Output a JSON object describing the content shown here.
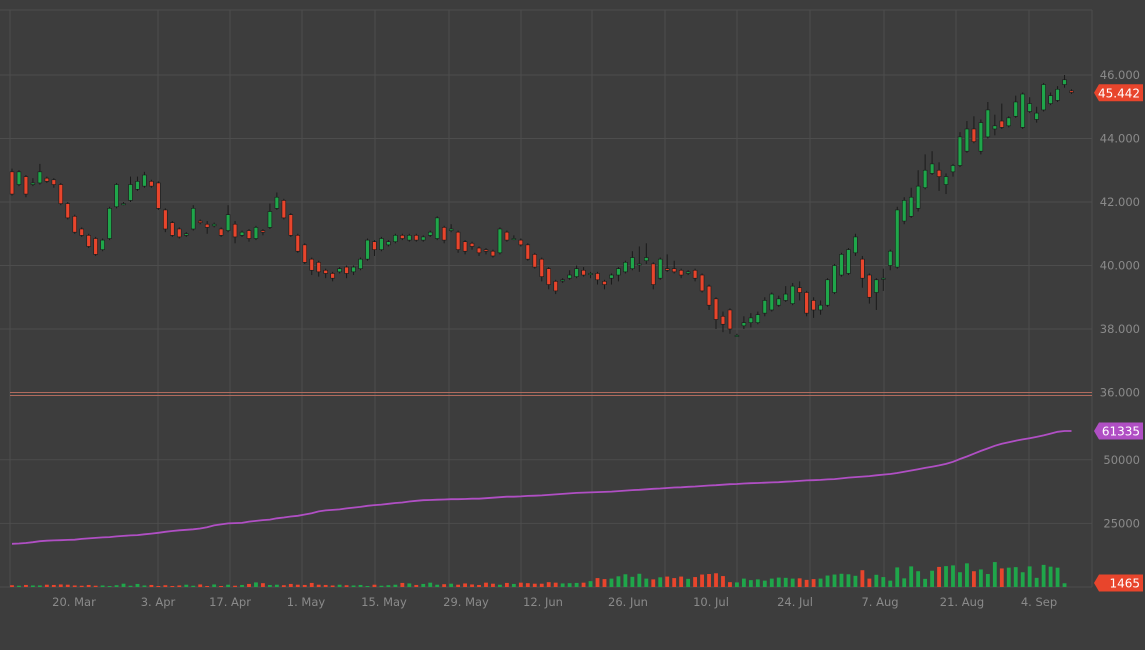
{
  "colors": {
    "background": "#3d3d3d",
    "grid": "#4d4d4d",
    "up": "#1fa64a",
    "down": "#e8452c",
    "line": "#b04fc4",
    "tick_text": "#8a8a8a",
    "separator": "#b06b5e"
  },
  "chart_data": [
    {
      "type": "candlestick",
      "title": "",
      "y_ticks": [
        "36.000",
        "38.000",
        "40.000",
        "42.000",
        "44.000",
        "46.000"
      ],
      "ylim": [
        36000,
        47800
      ],
      "last_value_label": "45.442",
      "grid": true,
      "candles": [
        [
          42.95,
          42.25,
          43.05,
          42.2
        ],
        [
          42.55,
          42.95,
          43.0,
          42.5
        ],
        [
          42.8,
          42.25,
          42.85,
          42.15
        ],
        [
          42.55,
          42.6,
          42.75,
          42.5
        ],
        [
          42.6,
          42.95,
          43.2,
          42.55
        ],
        [
          42.75,
          42.65,
          42.8,
          42.6
        ],
        [
          42.7,
          42.55,
          42.75,
          42.45
        ],
        [
          42.55,
          41.95,
          42.6,
          41.9
        ],
        [
          41.95,
          41.5,
          42.0,
          41.45
        ],
        [
          41.55,
          41.05,
          41.6,
          41.0
        ],
        [
          41.15,
          40.95,
          41.2,
          40.9
        ],
        [
          40.95,
          40.6,
          41.0,
          40.55
        ],
        [
          40.85,
          40.35,
          40.9,
          40.3
        ],
        [
          40.5,
          40.8,
          40.85,
          40.45
        ],
        [
          40.85,
          41.8,
          41.85,
          40.8
        ],
        [
          41.85,
          42.55,
          42.6,
          41.8
        ],
        [
          41.95,
          41.95,
          42.0,
          41.9
        ],
        [
          42.05,
          42.55,
          42.8,
          42.0
        ],
        [
          42.4,
          42.65,
          42.8,
          42.35
        ],
        [
          42.5,
          42.85,
          42.95,
          42.45
        ],
        [
          42.65,
          42.5,
          42.7,
          42.45
        ],
        [
          42.6,
          41.8,
          42.65,
          41.75
        ],
        [
          41.75,
          41.15,
          41.8,
          41.05
        ],
        [
          41.35,
          40.95,
          41.4,
          40.9
        ],
        [
          41.15,
          40.9,
          41.2,
          40.85
        ],
        [
          40.95,
          41.0,
          41.05,
          40.9
        ],
        [
          41.15,
          41.8,
          41.9,
          41.1
        ],
        [
          41.4,
          41.35,
          41.45,
          41.3
        ],
        [
          41.3,
          41.2,
          41.4,
          41.0
        ],
        [
          41.25,
          41.3,
          41.35,
          41.2
        ],
        [
          41.15,
          40.95,
          41.2,
          40.9
        ],
        [
          41.1,
          41.6,
          41.9,
          41.05
        ],
        [
          41.3,
          40.9,
          41.4,
          40.7
        ],
        [
          40.95,
          41.05,
          41.1,
          40.9
        ],
        [
          41.1,
          40.85,
          41.15,
          40.75
        ],
        [
          40.85,
          41.2,
          41.25,
          40.8
        ],
        [
          41.1,
          41.05,
          41.15,
          40.95
        ],
        [
          41.2,
          41.7,
          41.95,
          41.15
        ],
        [
          41.8,
          42.15,
          42.3,
          41.75
        ],
        [
          42.05,
          41.5,
          42.1,
          41.45
        ],
        [
          41.6,
          40.95,
          41.65,
          40.9
        ],
        [
          40.95,
          40.45,
          41.0,
          40.4
        ],
        [
          40.65,
          40.1,
          40.7,
          40.05
        ],
        [
          40.2,
          39.85,
          40.25,
          39.7
        ],
        [
          40.1,
          39.8,
          40.15,
          39.65
        ],
        [
          39.85,
          39.75,
          39.9,
          39.6
        ],
        [
          39.75,
          39.6,
          39.8,
          39.5
        ],
        [
          39.8,
          39.9,
          39.95,
          39.75
        ],
        [
          39.95,
          39.75,
          40.0,
          39.6
        ],
        [
          39.8,
          39.95,
          40.0,
          39.7
        ],
        [
          39.9,
          40.2,
          40.25,
          39.85
        ],
        [
          40.2,
          40.8,
          40.85,
          40.15
        ],
        [
          40.75,
          40.5,
          40.8,
          40.3
        ],
        [
          40.5,
          40.85,
          40.9,
          40.45
        ],
        [
          40.65,
          40.75,
          40.8,
          40.6
        ],
        [
          40.75,
          40.95,
          41.0,
          40.7
        ],
        [
          40.95,
          40.85,
          41.0,
          40.8
        ],
        [
          40.8,
          40.95,
          41.0,
          40.75
        ],
        [
          40.95,
          40.8,
          41.0,
          40.75
        ],
        [
          40.8,
          40.9,
          40.95,
          40.75
        ],
        [
          40.95,
          41.05,
          41.1,
          40.9
        ],
        [
          40.85,
          41.5,
          41.55,
          40.8
        ],
        [
          41.2,
          40.8,
          41.25,
          40.7
        ],
        [
          41.1,
          41.15,
          41.3,
          41.05
        ],
        [
          41.05,
          40.5,
          41.1,
          40.4
        ],
        [
          40.75,
          40.45,
          40.8,
          40.35
        ],
        [
          40.7,
          40.6,
          40.75,
          40.5
        ],
        [
          40.55,
          40.4,
          40.6,
          40.3
        ],
        [
          40.5,
          40.45,
          40.55,
          40.35
        ],
        [
          40.45,
          40.3,
          40.5,
          40.25
        ],
        [
          40.4,
          41.15,
          41.2,
          40.35
        ],
        [
          41.05,
          40.8,
          41.1,
          40.75
        ],
        [
          40.85,
          40.85,
          40.95,
          40.8
        ],
        [
          40.8,
          40.65,
          40.85,
          40.6
        ],
        [
          40.65,
          40.2,
          40.7,
          40.15
        ],
        [
          40.35,
          39.95,
          40.4,
          39.9
        ],
        [
          40.2,
          39.65,
          40.25,
          39.5
        ],
        [
          39.9,
          39.4,
          39.95,
          39.25
        ],
        [
          39.5,
          39.2,
          39.55,
          39.1
        ],
        [
          39.55,
          39.55,
          39.6,
          39.45
        ],
        [
          39.6,
          39.7,
          39.85,
          39.55
        ],
        [
          39.65,
          39.9,
          40.0,
          39.6
        ],
        [
          39.85,
          39.7,
          39.95,
          39.65
        ],
        [
          39.75,
          39.75,
          39.8,
          39.6
        ],
        [
          39.75,
          39.55,
          39.8,
          39.4
        ],
        [
          39.5,
          39.4,
          39.55,
          39.25
        ],
        [
          39.6,
          39.7,
          39.75,
          39.4
        ],
        [
          39.7,
          39.9,
          39.95,
          39.5
        ],
        [
          39.8,
          40.1,
          40.15,
          39.75
        ],
        [
          39.9,
          40.25,
          40.45,
          39.85
        ],
        [
          40.05,
          40.05,
          40.6,
          39.8
        ],
        [
          40.15,
          40.25,
          40.7,
          40.05
        ],
        [
          40.05,
          39.4,
          40.1,
          39.25
        ],
        [
          39.6,
          40.2,
          40.25,
          39.55
        ],
        [
          39.9,
          39.85,
          40.35,
          39.8
        ],
        [
          39.9,
          39.8,
          40.15,
          39.75
        ],
        [
          39.85,
          39.7,
          39.9,
          39.6
        ],
        [
          39.75,
          39.8,
          39.85,
          39.7
        ],
        [
          39.85,
          39.6,
          39.9,
          39.5
        ],
        [
          39.7,
          39.2,
          39.75,
          39.15
        ],
        [
          39.35,
          38.75,
          39.4,
          38.6
        ],
        [
          38.95,
          38.3,
          39.0,
          38.0
        ],
        [
          38.4,
          38.15,
          38.55,
          37.9
        ],
        [
          38.6,
          38.0,
          38.65,
          37.85
        ],
        [
          37.8,
          37.8,
          37.85,
          37.75
        ],
        [
          38.1,
          38.2,
          38.4,
          38.0
        ],
        [
          38.2,
          38.35,
          38.5,
          38.05
        ],
        [
          38.2,
          38.45,
          38.55,
          38.15
        ],
        [
          38.5,
          38.9,
          39.0,
          38.4
        ],
        [
          38.6,
          39.1,
          39.15,
          38.55
        ],
        [
          38.75,
          38.95,
          39.05,
          38.7
        ],
        [
          38.9,
          39.1,
          39.35,
          38.85
        ],
        [
          38.8,
          39.35,
          39.45,
          38.75
        ],
        [
          39.3,
          39.15,
          39.5,
          38.9
        ],
        [
          39.15,
          38.5,
          39.2,
          38.4
        ],
        [
          38.9,
          38.6,
          39.0,
          38.35
        ],
        [
          38.6,
          38.75,
          38.9,
          38.45
        ],
        [
          38.75,
          39.55,
          39.6,
          38.7
        ],
        [
          39.15,
          40.0,
          40.05,
          39.1
        ],
        [
          39.7,
          40.35,
          40.4,
          39.65
        ],
        [
          39.75,
          40.5,
          40.55,
          39.7
        ],
        [
          40.4,
          40.9,
          41.0,
          40.3
        ],
        [
          40.2,
          39.6,
          40.3,
          39.3
        ],
        [
          39.7,
          39.0,
          39.75,
          38.8
        ],
        [
          39.15,
          39.55,
          39.6,
          38.6
        ],
        [
          39.6,
          39.6,
          39.9,
          39.2
        ],
        [
          40.0,
          40.45,
          40.5,
          39.85
        ],
        [
          39.95,
          41.75,
          41.85,
          39.9
        ],
        [
          41.4,
          42.05,
          42.15,
          41.3
        ],
        [
          41.55,
          42.15,
          42.45,
          41.5
        ],
        [
          41.8,
          42.5,
          43.0,
          41.7
        ],
        [
          42.45,
          43.0,
          43.5,
          42.4
        ],
        [
          42.9,
          43.2,
          43.6,
          42.85
        ],
        [
          43.0,
          42.8,
          43.25,
          42.35
        ],
        [
          42.55,
          42.8,
          42.9,
          42.25
        ],
        [
          42.95,
          43.15,
          43.2,
          42.8
        ],
        [
          43.15,
          44.05,
          44.2,
          43.1
        ],
        [
          43.6,
          44.3,
          44.55,
          43.55
        ],
        [
          44.3,
          43.9,
          44.7,
          43.85
        ],
        [
          43.6,
          44.5,
          44.6,
          43.5
        ],
        [
          44.05,
          44.9,
          45.15,
          44.0
        ],
        [
          44.3,
          44.4,
          44.75,
          44.1
        ],
        [
          44.55,
          44.35,
          45.1,
          44.3
        ],
        [
          44.4,
          44.65,
          44.7,
          44.35
        ],
        [
          44.7,
          45.15,
          45.35,
          44.65
        ],
        [
          44.35,
          45.4,
          45.45,
          44.3
        ],
        [
          44.85,
          45.1,
          45.3,
          44.8
        ],
        [
          44.6,
          44.8,
          45.0,
          44.5
        ],
        [
          44.9,
          45.7,
          45.75,
          44.85
        ],
        [
          45.1,
          45.35,
          45.45,
          45.05
        ],
        [
          45.2,
          45.55,
          45.65,
          45.15
        ],
        [
          45.7,
          45.85,
          46.0,
          45.6
        ],
        [
          45.5,
          45.45,
          45.55,
          45.4
        ]
      ]
    },
    {
      "type": "line",
      "title": "",
      "y_ticks": [
        "25000",
        "50000"
      ],
      "ylim": [
        0,
        63000
      ],
      "last_value_label": "61335",
      "series": [
        {
          "name": "",
          "values": [
            17000,
            17100,
            17300,
            17600,
            18000,
            18200,
            18300,
            18400,
            18500,
            18600,
            18900,
            19100,
            19300,
            19500,
            19600,
            19900,
            20100,
            20300,
            20400,
            20700,
            21000,
            21300,
            21700,
            22000,
            22300,
            22500,
            22700,
            23000,
            23500,
            24200,
            24600,
            25000,
            25100,
            25200,
            25700,
            26000,
            26300,
            26500,
            27000,
            27300,
            27700,
            28000,
            28500,
            29000,
            29700,
            30100,
            30300,
            30500,
            30900,
            31200,
            31500,
            31900,
            32200,
            32400,
            32700,
            33000,
            33200,
            33600,
            33900,
            34100,
            34200,
            34300,
            34400,
            34500,
            34500,
            34600,
            34700,
            34700,
            34900,
            35100,
            35300,
            35500,
            35500,
            35600,
            35800,
            35900,
            36000,
            36200,
            36400,
            36600,
            36800,
            37000,
            37100,
            37200,
            37300,
            37400,
            37500,
            37700,
            37900,
            38100,
            38200,
            38400,
            38600,
            38700,
            38900,
            39100,
            39200,
            39400,
            39500,
            39700,
            39900,
            40000,
            40200,
            40400,
            40500,
            40700,
            40800,
            40900,
            41000,
            41100,
            41200,
            41400,
            41500,
            41700,
            41900,
            42000,
            42100,
            42300,
            42400,
            42700,
            43000,
            43200,
            43400,
            43600,
            43900,
            44200,
            44400,
            44800,
            45300,
            45800,
            46300,
            46800,
            47300,
            47800,
            48400,
            49200,
            50300,
            51300,
            52400,
            53500,
            54500,
            55500,
            56300,
            56900,
            57500,
            58000,
            58500,
            59000,
            59600,
            60300,
            61000,
            61335,
            61335
          ]
        }
      ]
    },
    {
      "type": "bar",
      "title": "",
      "last_value_label": "1465",
      "x_ticks": [
        "20. Mar",
        "3. Apr",
        "17. Apr",
        "1. May",
        "15. May",
        "29. May",
        "12. Jun",
        "26. Jun",
        "10. Jul",
        "24. Jul",
        "7. Aug",
        "21. Aug",
        "4. Sep"
      ],
      "values": [
        700,
        500,
        800,
        600,
        600,
        900,
        800,
        1000,
        900,
        600,
        500,
        800,
        500,
        600,
        400,
        700,
        1300,
        500,
        1200,
        600,
        800,
        400,
        700,
        400,
        600,
        900,
        500,
        1000,
        400,
        1000,
        400,
        900,
        500,
        800,
        1200,
        1800,
        1500,
        800,
        900,
        700,
        1200,
        900,
        800,
        1600,
        900,
        800,
        600,
        900,
        700,
        600,
        800,
        400,
        900,
        500,
        700,
        900,
        1600,
        1400,
        800,
        1200,
        1700,
        900,
        1100,
        1300,
        900,
        1400,
        1000,
        800,
        1700,
        1300,
        900,
        1600,
        1200,
        1700,
        1500,
        1300,
        1300,
        1900,
        1700,
        1400,
        1500,
        1600,
        1700,
        2300,
        3500,
        3100,
        3300,
        4200,
        5000,
        4000,
        5200,
        3300,
        3000,
        3800,
        4100,
        3500,
        4100,
        3200,
        3900,
        4900,
        5100,
        5400,
        4300,
        1900,
        1800,
        3300,
        2700,
        3000,
        2500,
        3300,
        3700,
        3600,
        3300,
        3400,
        2800,
        3100,
        3300,
        4500,
        4900,
        5200,
        5000,
        4400,
        6600,
        3300,
        4800,
        3900,
        2500,
        7700,
        3400,
        8100,
        6200,
        3200,
        6400,
        7900,
        8200,
        8500,
        5800,
        9300,
        6200,
        6900,
        5100,
        9800,
        7300,
        7600,
        7800,
        5800,
        8100,
        3600,
        8700,
        8000,
        7600,
        1465,
        0
      ]
    }
  ]
}
